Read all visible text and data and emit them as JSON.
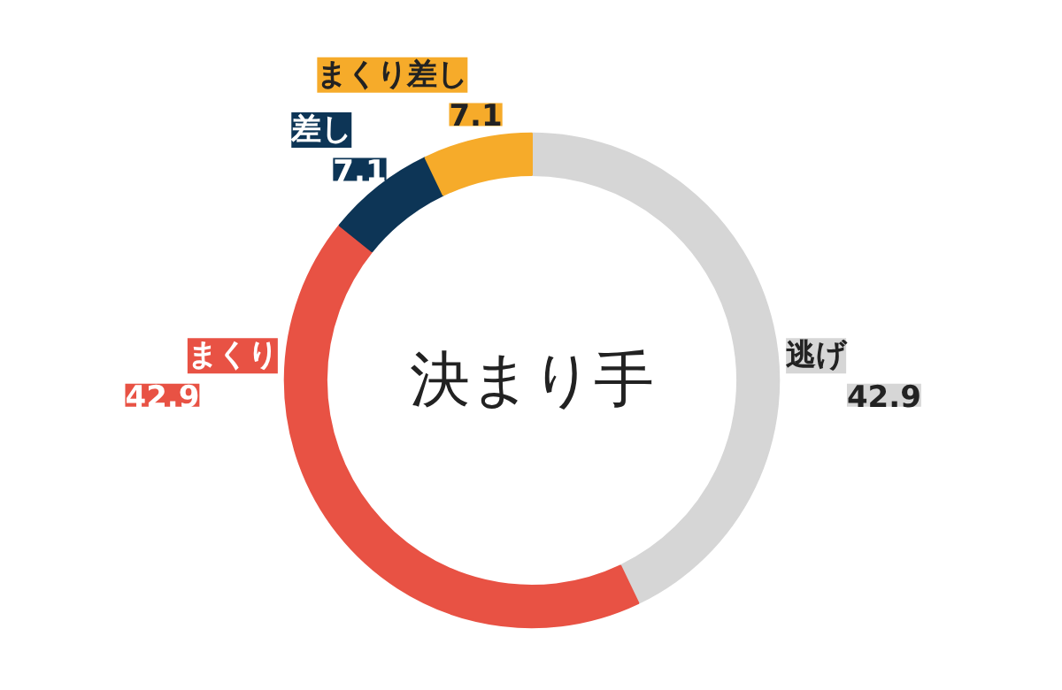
{
  "chart_data": {
    "type": "donut",
    "title": "決まり手",
    "categories": [
      "逃げ",
      "まくり",
      "差し",
      "まくり差し"
    ],
    "values": [
      42.9,
      42.9,
      7.1,
      7.1
    ],
    "colors": [
      "#d6d6d6",
      "#e85244",
      "#0d3556",
      "#f6ab2a"
    ],
    "data_labels": true
  }
}
